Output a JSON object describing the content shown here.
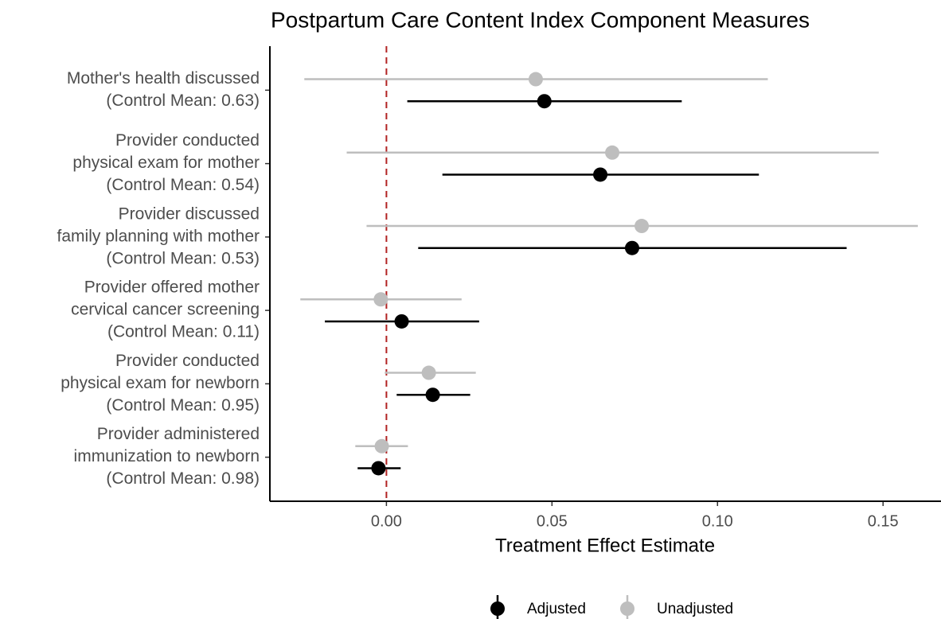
{
  "chart_data": {
    "type": "forest",
    "title": "Postpartum Care Content Index Component Measures",
    "x_label": "Treatment Effect Estimate",
    "categories": [
      [
        "Mother's health discussed",
        "(Control Mean: 0.63)"
      ],
      [
        "Provider conducted",
        "physical exam for mother",
        "(Control Mean: 0.54)"
      ],
      [
        "Provider discussed",
        "family planning with mother",
        "(Control Mean: 0.53)"
      ],
      [
        "Provider offered mother",
        "cervical cancer screening",
        "(Control Mean: 0.11)"
      ],
      [
        "Provider conducted",
        "physical exam for newborn",
        "(Control Mean: 0.95)"
      ],
      [
        "Provider administered",
        "immunization to newborn",
        "(Control Mean: 0.98)"
      ]
    ],
    "series": [
      {
        "name": "Unadjusted",
        "color": "#bebebe",
        "values": [
          0.0451,
          0.0682,
          0.0771,
          -0.0017,
          0.0128,
          -0.0014
        ],
        "lower": [
          -0.0248,
          -0.012,
          -0.006,
          -0.026,
          -0.0005,
          -0.0094
        ],
        "upper": [
          0.1152,
          0.1487,
          0.1605,
          0.0227,
          0.027,
          0.0065
        ]
      },
      {
        "name": "Adjusted",
        "color": "#000000",
        "values": [
          0.0477,
          0.0646,
          0.0742,
          0.0046,
          0.014,
          -0.0024
        ],
        "lower": [
          0.0063,
          0.0169,
          0.0096,
          -0.0186,
          0.0031,
          -0.0087
        ],
        "upper": [
          0.0892,
          0.1125,
          0.139,
          0.028,
          0.0253,
          0.0043
        ]
      }
    ],
    "legend_order": [
      "Adjusted",
      "Unadjusted"
    ],
    "reference_line": {
      "value": 0,
      "color": "#b22222"
    },
    "xlim": [
      -0.0352,
      0.1675
    ],
    "xticks": [
      {
        "value": 0,
        "label": "0.00"
      },
      0.05,
      {
        "value": 0.1,
        "label": "0.10"
      },
      0.15
    ],
    "legend": "bottom"
  }
}
